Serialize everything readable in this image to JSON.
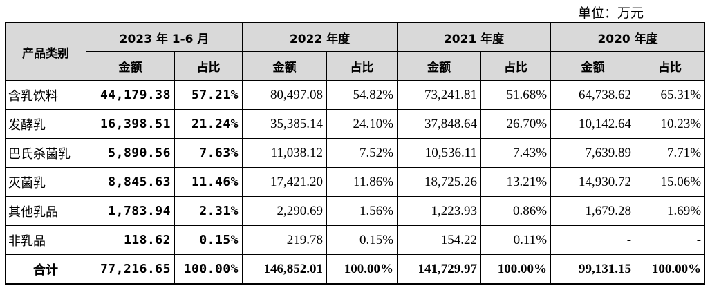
{
  "unit_note": "单位：万元",
  "header": {
    "category_label": "产品类别",
    "periods": [
      "2023 年 1-6 月",
      "2022 年度",
      "2021 年度",
      "2020 年度"
    ],
    "amount_label": "金额",
    "ratio_label": "占比"
  },
  "rows": [
    {
      "name": "含乳饮料",
      "cells": [
        "44,179.38",
        "57.21%",
        "80,497.08",
        "54.82%",
        "73,241.81",
        "51.68%",
        "64,738.62",
        "65.31%"
      ]
    },
    {
      "name": "发酵乳",
      "cells": [
        "16,398.51",
        "21.24%",
        "35,385.14",
        "24.10%",
        "37,848.64",
        "26.70%",
        "10,142.64",
        "10.23%"
      ]
    },
    {
      "name": "巴氏杀菌乳",
      "cells": [
        "5,890.56",
        "7.63%",
        "11,038.12",
        "7.52%",
        "10,536.11",
        "7.43%",
        "7,639.89",
        "7.71%"
      ]
    },
    {
      "name": "灭菌乳",
      "cells": [
        "8,845.63",
        "11.46%",
        "17,421.20",
        "11.86%",
        "18,725.26",
        "13.21%",
        "14,930.72",
        "15.06%"
      ]
    },
    {
      "name": "其他乳品",
      "cells": [
        "1,783.94",
        "2.31%",
        "2,290.69",
        "1.56%",
        "1,223.93",
        "0.86%",
        "1,679.28",
        "1.69%"
      ]
    },
    {
      "name": "非乳品",
      "cells": [
        "118.62",
        "0.15%",
        "219.78",
        "0.15%",
        "154.22",
        "0.11%",
        "-",
        "-"
      ]
    },
    {
      "name": "合计",
      "cells": [
        "77,216.65",
        "100.00%",
        "146,852.01",
        "100.00%",
        "141,729.97",
        "100.00%",
        "99,131.15",
        "100.00%"
      ]
    }
  ]
}
